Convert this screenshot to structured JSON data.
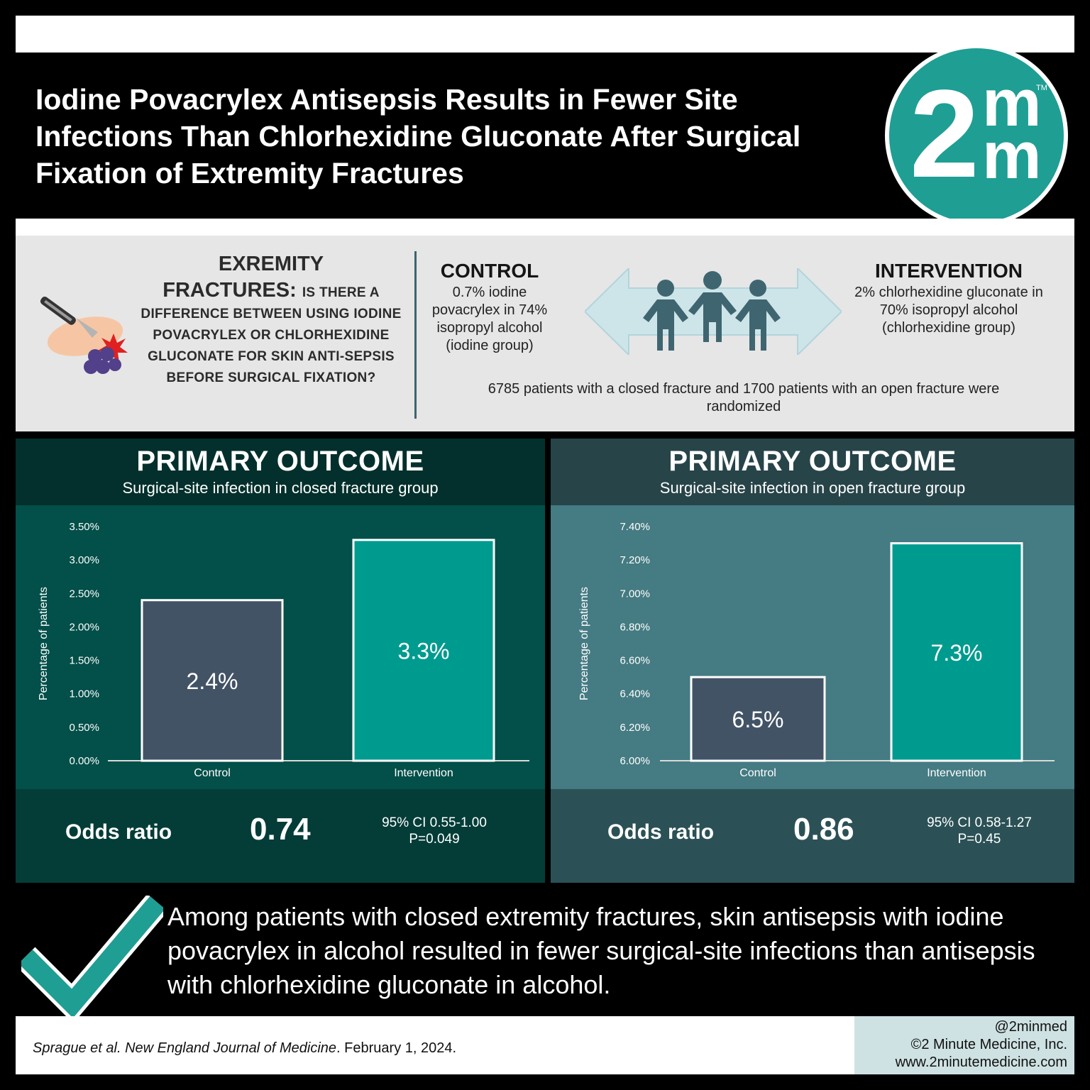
{
  "title": "Iodine Povacrylex Antisepsis Results in Fewer Site Infections Than Chlorhexidine Gluconate After Surgical Fixation of Extremity Fractures",
  "logo": {
    "numeral": "2",
    "m_top": "m",
    "m_bottom": "m",
    "tm": "TM"
  },
  "question": {
    "heading_line1": "EXREMITY",
    "heading_line2": "FRACTURES:",
    "inline": "IS THERE A",
    "body": "DIFFERENCE BETWEEN USING IODINE POVACRYLEX OR CHLORHEXIDINE GLUCONATE FOR SKIN ANTI-SEPSIS BEFORE SURGICAL FIXATION?"
  },
  "control": {
    "title": "CONTROL",
    "desc": "0.7% iodine povacrylex in 74% isopropyl alcohol (iodine group)"
  },
  "intervention": {
    "title": "INTERVENTION",
    "desc": "2% chlorhexidine gluconate in 70% isopropyl alcohol (chlorhexidine group)"
  },
  "randomized": "6785 patients with a closed fracture and 1700 patients with an open fracture were randomized",
  "panels": [
    {
      "heading": "PRIMARY OUTCOME",
      "subheading": "Surgical-site infection in closed fracture group",
      "odds_label": "Odds ratio",
      "odds_value": "0.74",
      "ci": "95% CI 0.55-1.00",
      "p": "P=0.049"
    },
    {
      "heading": "PRIMARY OUTCOME",
      "subheading": "Surgical-site infection in open fracture group",
      "odds_label": "Odds ratio",
      "odds_value": "0.86",
      "ci": "95% CI 0.58-1.27",
      "p": "P=0.45"
    }
  ],
  "chart_data": [
    {
      "type": "bar",
      "categories": [
        "Control",
        "Intervention"
      ],
      "values": [
        2.4,
        3.3
      ],
      "data_labels": [
        "2.4%",
        "3.3%"
      ],
      "ylabel": "Percentage of patients",
      "ylim": [
        0,
        3.5
      ],
      "yticks": [
        "0.00%",
        "0.50%",
        "1.00%",
        "1.50%",
        "2.00%",
        "2.50%",
        "3.00%",
        "3.50%"
      ],
      "ytick_values": [
        0,
        0.5,
        1.0,
        1.5,
        2.0,
        2.5,
        3.0,
        3.5
      ],
      "bar_colors": [
        "#435366",
        "#009b8f"
      ],
      "grid": false
    },
    {
      "type": "bar",
      "categories": [
        "Control",
        "Intervention"
      ],
      "values": [
        6.5,
        7.3
      ],
      "data_labels": [
        "6.5%",
        "7.3%"
      ],
      "ylabel": "Percentage of patients",
      "ylim": [
        6.0,
        7.4
      ],
      "yticks": [
        "6.00%",
        "6.20%",
        "6.40%",
        "6.60%",
        "6.80%",
        "7.00%",
        "7.20%",
        "7.40%"
      ],
      "ytick_values": [
        6.0,
        6.2,
        6.4,
        6.6,
        6.8,
        7.0,
        7.2,
        7.4
      ],
      "bar_colors": [
        "#435366",
        "#009b8f"
      ],
      "grid": false
    }
  ],
  "conclusion": "Among patients with closed extremity fractures, skin antisepsis with iodine povacrylex in alcohol resulted in fewer surgical-site infections than antisepsis with chlorhexidine gluconate in alcohol.",
  "citation": {
    "authors": "Sprague et al.",
    "journal": "New England Journal of Medicine",
    "date": ". February 1, 2024."
  },
  "credit": {
    "handle": "@2minmed",
    "company": "©2 Minute Medicine, Inc.",
    "url": "www.2minutemedicine.com"
  },
  "colors": {
    "left_header": "#03302c",
    "left_chart": "#034f49",
    "left_odds": "#043d38",
    "right_header": "#274449",
    "right_chart": "#457b82",
    "right_odds": "#2b5156",
    "control_bar": "#435366",
    "intervention_bar": "#009b8f",
    "logo": "#1f9e94"
  }
}
